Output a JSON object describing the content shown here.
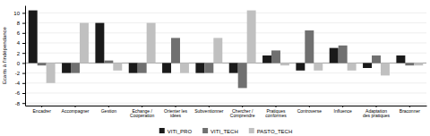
{
  "chart_data": {
    "type": "bar",
    "categories": [
      "Encadrer",
      "Accompagner",
      "Gestion",
      "Echange /\nCoopération",
      "Orienter les\nidées",
      "Subventionner",
      "Chercher /\nComprendre",
      "Pratiques\nconformes",
      "Controverse",
      "Influence",
      "Adaptation\ndes pratiques",
      "Braconner"
    ],
    "series": [
      {
        "name": "VITI_PRO",
        "color": "#1a1a1a",
        "values": [
          10.5,
          -2.0,
          8.0,
          -2.0,
          -2.0,
          -2.0,
          -2.0,
          1.5,
          -1.5,
          3.0,
          -1.0,
          1.5
        ]
      },
      {
        "name": "VITI_TECH",
        "color": "#707070",
        "values": [
          -0.5,
          -2.0,
          0.5,
          -2.0,
          5.0,
          -2.0,
          -5.0,
          2.5,
          6.5,
          3.5,
          1.5,
          -0.5
        ]
      },
      {
        "name": "PASTO_TECH",
        "color": "#c0c0c0",
        "values": [
          -4.0,
          8.0,
          -1.5,
          8.0,
          -2.0,
          5.0,
          10.5,
          -0.5,
          -1.5,
          -1.5,
          -2.5,
          -0.5
        ]
      }
    ],
    "ylabel": "Ecarts à l'indépendance",
    "ylim": [
      -8.5,
      11.5
    ],
    "yticks": [
      -8,
      -6,
      -4,
      -2,
      0,
      2,
      4,
      6,
      8,
      10
    ],
    "grid": true,
    "legend": "bottom"
  }
}
